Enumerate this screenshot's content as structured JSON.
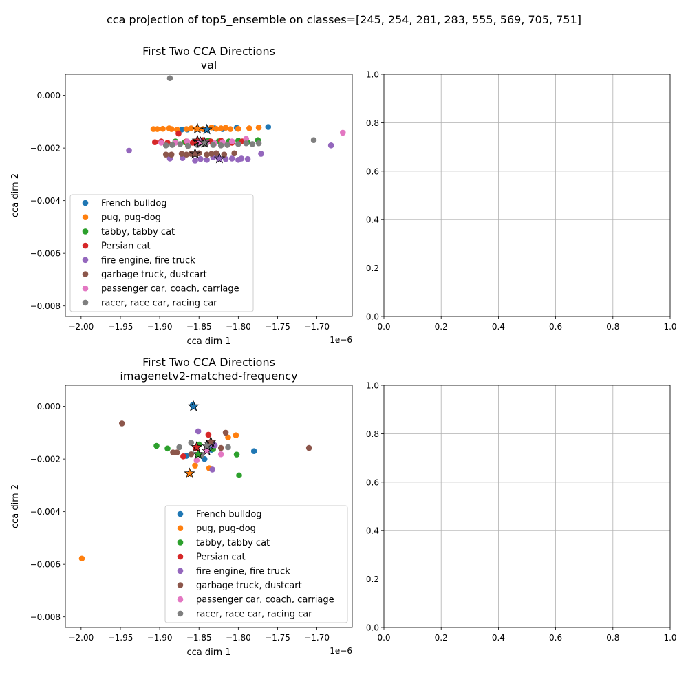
{
  "figure": {
    "suptitle": "cca projection of top5_ensemble on classes=[245, 254, 281, 283, 555, 569, 705, 751]"
  },
  "classes": [
    {
      "name": "French bulldog",
      "color": "#1f77b4"
    },
    {
      "name": "pug, pug-dog",
      "color": "#ff7f0e"
    },
    {
      "name": "tabby, tabby cat",
      "color": "#2ca02c"
    },
    {
      "name": "Persian cat",
      "color": "#d62728"
    },
    {
      "name": "fire engine, fire truck",
      "color": "#9467bd"
    },
    {
      "name": "garbage truck, dustcart",
      "color": "#8c564b"
    },
    {
      "name": "passenger car, coach, carriage",
      "color": "#e377c2"
    },
    {
      "name": "racer, race car, racing car",
      "color": "#7f7f7f"
    }
  ],
  "chart_data": [
    {
      "type": "scatter",
      "title": "First Two CCA Directions",
      "subtitle": "val",
      "xlabel": "cca dirn 1",
      "ylabel": "cca dirn 2",
      "x_offset_label": "1e−6",
      "x_scale": 1e-06,
      "xlim": [
        -2.02,
        -1.655
      ],
      "ylim": [
        -0.0084,
        0.0008
      ],
      "xticks": [
        -2.0,
        -1.95,
        -1.9,
        -1.85,
        -1.8,
        -1.75,
        -1.7
      ],
      "xtick_labels": [
        "−2.00",
        "−1.95",
        "−1.90",
        "−1.85",
        "−1.80",
        "−1.75",
        "−1.70"
      ],
      "yticks": [
        0.0,
        -0.002,
        -0.004,
        -0.006,
        -0.008
      ],
      "ytick_labels": [
        "0.000",
        "−0.002",
        "−0.004",
        "−0.006",
        "−0.008"
      ],
      "grid": false,
      "legend_position": "lower-left",
      "series": [
        {
          "name": "French bulldog",
          "points": [
            [
              -1.872,
              -0.0013
            ],
            [
              -1.865,
              -0.0013
            ],
            [
              -1.852,
              -0.00127
            ],
            [
              -1.845,
              -0.00128
            ],
            [
              -1.83,
              -0.00125
            ],
            [
              -1.82,
              -0.00128
            ],
            [
              -1.802,
              -0.00123
            ],
            [
              -1.762,
              -0.0012
            ]
          ],
          "centroid": [
            -1.84,
            -0.0013
          ]
        },
        {
          "name": "pug, pug-dog",
          "points": [
            [
              -1.908,
              -0.00128
            ],
            [
              -1.903,
              -0.00128
            ],
            [
              -1.896,
              -0.00127
            ],
            [
              -1.888,
              -0.00125
            ],
            [
              -1.885,
              -0.00128
            ],
            [
              -1.878,
              -0.0013
            ],
            [
              -1.866,
              -0.00128
            ],
            [
              -1.86,
              -0.00125
            ],
            [
              -1.853,
              -0.00127
            ],
            [
              -1.845,
              -0.00128
            ],
            [
              -1.834,
              -0.00122
            ],
            [
              -1.828,
              -0.00127
            ],
            [
              -1.822,
              -0.00125
            ],
            [
              -1.816,
              -0.00123
            ],
            [
              -1.81,
              -0.00128
            ],
            [
              -1.8,
              -0.00127
            ],
            [
              -1.786,
              -0.00125
            ],
            [
              -1.774,
              -0.00122
            ]
          ],
          "centroid": [
            -1.852,
            -0.00127
          ]
        },
        {
          "name": "tabby, tabby cat",
          "points": [
            [
              -1.88,
              -0.00175
            ],
            [
              -1.868,
              -0.00178
            ],
            [
              -1.85,
              -0.00175
            ],
            [
              -1.838,
              -0.00172
            ],
            [
              -1.825,
              -0.00175
            ],
            [
              -1.812,
              -0.00175
            ],
            [
              -1.8,
              -0.00172
            ],
            [
              -1.788,
              -0.00178
            ],
            [
              -1.775,
              -0.0017
            ]
          ],
          "centroid": [
            -1.852,
            -0.00175
          ]
        },
        {
          "name": "Persian cat",
          "points": [
            [
              -1.906,
              -0.00178
            ],
            [
              -1.898,
              -0.00175
            ],
            [
              -1.89,
              -0.0018
            ],
            [
              -1.876,
              -0.00145
            ],
            [
              -1.866,
              -0.00175
            ],
            [
              -1.858,
              -0.0018
            ],
            [
              -1.845,
              -0.0017
            ],
            [
              -1.835,
              -0.00175
            ],
            [
              -1.822,
              -0.00172
            ],
            [
              -1.808,
              -0.0018
            ],
            [
              -1.795,
              -0.00175
            ]
          ],
          "centroid": [
            -1.852,
            -0.00172
          ]
        },
        {
          "name": "fire engine, fire truck",
          "points": [
            [
              -1.939,
              -0.0021
            ],
            [
              -1.887,
              -0.0024
            ],
            [
              -1.871,
              -0.00238
            ],
            [
              -1.855,
              -0.00248
            ],
            [
              -1.848,
              -0.00242
            ],
            [
              -1.84,
              -0.00245
            ],
            [
              -1.832,
              -0.00235
            ],
            [
              -1.825,
              -0.00238
            ],
            [
              -1.816,
              -0.00242
            ],
            [
              -1.808,
              -0.0024
            ],
            [
              -1.8,
              -0.00245
            ],
            [
              -1.796,
              -0.0024
            ],
            [
              -1.788,
              -0.00242
            ],
            [
              -1.771,
              -0.00222
            ],
            [
              -1.682,
              -0.0019
            ]
          ],
          "centroid": [
            -1.824,
            -0.0024
          ]
        },
        {
          "name": "garbage truck, dustcart",
          "points": [
            [
              -1.892,
              -0.00225
            ],
            [
              -1.885,
              -0.00225
            ],
            [
              -1.872,
              -0.00222
            ],
            [
              -1.866,
              -0.00225
            ],
            [
              -1.86,
              -0.00222
            ],
            [
              -1.85,
              -0.0022
            ],
            [
              -1.84,
              -0.00225
            ],
            [
              -1.834,
              -0.00222
            ],
            [
              -1.828,
              -0.0022
            ],
            [
              -1.818,
              -0.00225
            ],
            [
              -1.805,
              -0.0022
            ]
          ],
          "centroid": [
            -1.855,
            -0.00222
          ]
        },
        {
          "name": "passenger car, coach, carriage",
          "points": [
            [
              -1.898,
              -0.0018
            ],
            [
              -1.88,
              -0.0018
            ],
            [
              -1.865,
              -0.00175
            ],
            [
              -1.852,
              -0.00178
            ],
            [
              -1.84,
              -0.0018
            ],
            [
              -1.83,
              -0.00182
            ],
            [
              -1.82,
              -0.00178
            ],
            [
              -1.808,
              -0.00175
            ],
            [
              -1.79,
              -0.00165
            ],
            [
              -1.667,
              -0.00142
            ]
          ],
          "centroid": [
            -1.848,
            -0.00178
          ]
        },
        {
          "name": "racer, race car, racing car",
          "points": [
            [
              -1.887,
              0.00065
            ],
            [
              -1.892,
              -0.0019
            ],
            [
              -1.884,
              -0.00188
            ],
            [
              -1.874,
              -0.00185
            ],
            [
              -1.864,
              -0.00192
            ],
            [
              -1.852,
              -0.00188
            ],
            [
              -1.842,
              -0.00185
            ],
            [
              -1.832,
              -0.00188
            ],
            [
              -1.822,
              -0.0019
            ],
            [
              -1.814,
              -0.00188
            ],
            [
              -1.8,
              -0.00185
            ],
            [
              -1.79,
              -0.00182
            ],
            [
              -1.782,
              -0.00185
            ],
            [
              -1.774,
              -0.00182
            ],
            [
              -1.704,
              -0.0017
            ]
          ],
          "centroid": [
            -1.843,
            -0.0018
          ]
        }
      ]
    },
    {
      "type": "scatter",
      "title": "First Two CCA Directions",
      "subtitle": "imagenetv2-matched-frequency",
      "xlabel": "cca dirn 1",
      "ylabel": "cca dirn 2",
      "x_offset_label": "1e−6",
      "x_scale": 1e-06,
      "xlim": [
        -2.02,
        -1.655
      ],
      "ylim": [
        -0.0084,
        0.0008
      ],
      "xticks": [
        -2.0,
        -1.95,
        -1.9,
        -1.85,
        -1.8,
        -1.75,
        -1.7
      ],
      "xtick_labels": [
        "−2.00",
        "−1.95",
        "−1.90",
        "−1.85",
        "−1.80",
        "−1.75",
        "−1.70"
      ],
      "yticks": [
        0.0,
        -0.002,
        -0.004,
        -0.006,
        -0.008
      ],
      "ytick_labels": [
        "0.000",
        "−0.002",
        "−0.004",
        "−0.006",
        "−0.008"
      ],
      "grid": false,
      "legend_position": "lower-right",
      "series": [
        {
          "name": "French bulldog",
          "points": [
            [
              -1.858,
              5e-05
            ],
            [
              -1.866,
              -0.00188
            ],
            [
              -1.843,
              -0.002
            ],
            [
              -1.834,
              -0.00165
            ],
            [
              -1.78,
              -0.0017
            ]
          ],
          "centroid": [
            -1.857,
            0.0
          ]
        },
        {
          "name": "pug, pug-dog",
          "points": [
            [
              -1.999,
              -0.00578
            ],
            [
              -1.855,
              -0.00225
            ],
            [
              -1.837,
              -0.00235
            ],
            [
              -1.813,
              -0.00118
            ],
            [
              -1.803,
              -0.0011
            ]
          ],
          "centroid": [
            -1.862,
            -0.00255
          ]
        },
        {
          "name": "tabby, tabby cat",
          "points": [
            [
              -1.904,
              -0.0015
            ],
            [
              -1.89,
              -0.0016
            ],
            [
              -1.85,
              -0.00145
            ],
            [
              -1.832,
              -0.00162
            ],
            [
              -1.802,
              -0.00183
            ],
            [
              -1.799,
              -0.00262
            ]
          ],
          "centroid": [
            -1.851,
            -0.00182
          ]
        },
        {
          "name": "Persian cat",
          "points": [
            [
              -1.87,
              -0.0019
            ],
            [
              -1.854,
              -0.0016
            ],
            [
              -1.838,
              -0.00108
            ],
            [
              -1.837,
              -0.0014
            ]
          ],
          "centroid": [
            -1.853,
            -0.00155
          ]
        },
        {
          "name": "fire engine, fire truck",
          "points": [
            [
              -1.851,
              -0.00095
            ],
            [
              -1.83,
              -0.00148
            ],
            [
              -1.833,
              -0.0024
            ]
          ],
          "centroid": [
            -1.836,
            -0.00145
          ]
        },
        {
          "name": "garbage truck, dustcart",
          "points": [
            [
              -1.948,
              -0.00065
            ],
            [
              -1.883,
              -0.00175
            ],
            [
              -1.878,
              -0.00175
            ],
            [
              -1.86,
              -0.00182
            ],
            [
              -1.822,
              -0.00158
            ],
            [
              -1.816,
              -0.001
            ],
            [
              -1.71,
              -0.00158
            ]
          ],
          "centroid": [
            -1.835,
            -0.00135
          ]
        },
        {
          "name": "passenger car, coach, carriage",
          "points": [
            [
              -1.853,
              -0.00205
            ],
            [
              -1.822,
              -0.00182
            ]
          ],
          "centroid": [
            -1.84,
            -0.00168
          ]
        },
        {
          "name": "racer, race car, racing car",
          "points": [
            [
              -1.86,
              -0.00138
            ],
            [
              -1.875,
              -0.00155
            ],
            [
              -1.847,
              -0.00185
            ],
            [
              -1.813,
              -0.00155
            ]
          ],
          "centroid": [
            -1.84,
            -0.0015
          ]
        }
      ]
    },
    {
      "type": "scatter",
      "xlim": [
        0,
        1
      ],
      "ylim": [
        0,
        1
      ],
      "xticks": [
        0.0,
        0.2,
        0.4,
        0.6,
        0.8,
        1.0
      ],
      "xtick_labels": [
        "0.0",
        "0.2",
        "0.4",
        "0.6",
        "0.8",
        "1.0"
      ],
      "yticks": [
        0.0,
        0.2,
        0.4,
        0.6,
        0.8,
        1.0
      ],
      "ytick_labels": [
        "0.0",
        "0.2",
        "0.4",
        "0.6",
        "0.8",
        "1.0"
      ],
      "grid": true,
      "series": []
    },
    {
      "type": "scatter",
      "xlim": [
        0,
        1
      ],
      "ylim": [
        0,
        1
      ],
      "xticks": [
        0.0,
        0.2,
        0.4,
        0.6,
        0.8,
        1.0
      ],
      "xtick_labels": [
        "0.0",
        "0.2",
        "0.4",
        "0.6",
        "0.8",
        "1.0"
      ],
      "yticks": [
        0.0,
        0.2,
        0.4,
        0.6,
        0.8,
        1.0
      ],
      "ytick_labels": [
        "0.0",
        "0.2",
        "0.4",
        "0.6",
        "0.8",
        "1.0"
      ],
      "grid": true,
      "series": []
    }
  ]
}
